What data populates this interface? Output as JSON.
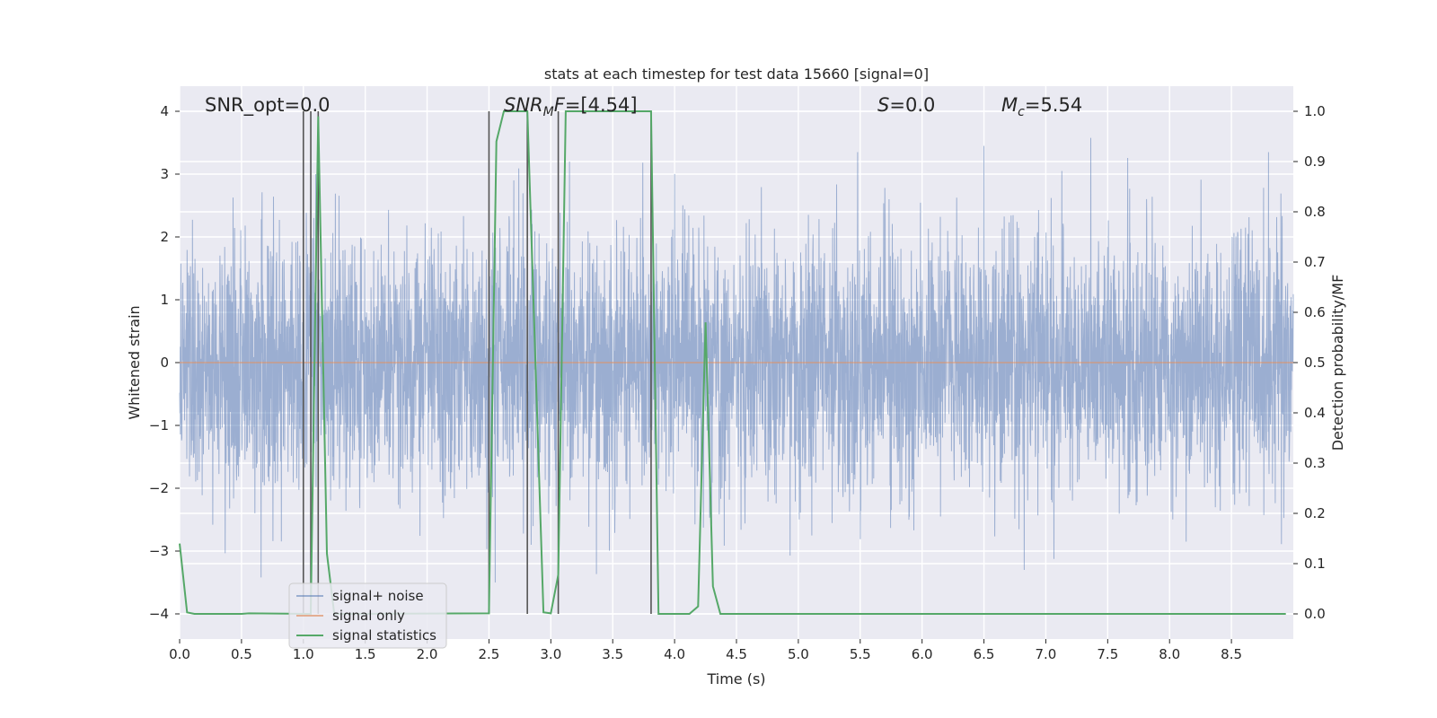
{
  "chart_data": {
    "type": "line",
    "title": "stats at each timestep for test data 15660 [signal=0]",
    "xlabel": "Time (s)",
    "ylabel": "Whitened strain",
    "ylabel_right": "Detection probability/MF",
    "xlim": [
      0.0,
      9.0
    ],
    "ylim": [
      -4.4,
      4.4
    ],
    "ylim_right": [
      -0.05,
      1.05
    ],
    "xticks": [
      0.0,
      0.5,
      1.0,
      1.5,
      2.0,
      2.5,
      3.0,
      3.5,
      4.0,
      4.5,
      5.0,
      5.5,
      6.0,
      6.5,
      7.0,
      7.5,
      8.0,
      8.5
    ],
    "xtick_labels": [
      "0.0",
      "0.5",
      "1.0",
      "1.5",
      "2.0",
      "2.5",
      "3.0",
      "3.5",
      "4.0",
      "4.5",
      "5.0",
      "5.5",
      "6.0",
      "6.5",
      "7.0",
      "7.5",
      "8.0",
      "8.5"
    ],
    "yticks_left": [
      -4,
      -3,
      -2,
      -1,
      0,
      1,
      2,
      3,
      4
    ],
    "ytick_labels_left": [
      "−4",
      "−3",
      "−2",
      "−1",
      "0",
      "1",
      "2",
      "3",
      "4"
    ],
    "yticks_right": [
      0.0,
      0.1,
      0.2,
      0.3,
      0.4,
      0.5,
      0.6,
      0.7,
      0.8,
      0.9,
      1.0
    ],
    "ytick_labels_right": [
      "0.0",
      "0.1",
      "0.2",
      "0.3",
      "0.4",
      "0.5",
      "0.6",
      "0.7",
      "0.8",
      "0.9",
      "1.0"
    ],
    "grid": true,
    "legend_position": "lower-left",
    "legend": [
      {
        "label": "signal+ noise",
        "color": "#4c72b0"
      },
      {
        "label": "signal only",
        "color": "#dd8452"
      },
      {
        "label": "signal statistics",
        "color": "#55a868"
      }
    ],
    "annotations": {
      "snr_opt": {
        "prefix": "SNR_opt=",
        "value": "0.0"
      },
      "snr_mf": {
        "main": "SNR",
        "sub": "M",
        "suffix": "F=",
        "value": "[4.54]"
      },
      "s": {
        "symbol": "S",
        "eq": "=",
        "value": "0.0"
      },
      "mc": {
        "symbol": "M",
        "sub": "c",
        "eq": "=",
        "value": "5.54"
      }
    },
    "series": [
      {
        "name": "signal+ noise",
        "axis": "left",
        "color": "#4c72b0",
        "note": "dense whitened-noise trace, typical amplitude about ±2, spikes to about ±3.5",
        "noise": {
          "n_samples": 4500,
          "sigma": 1.0,
          "clip": 3.6,
          "seed": 15660
        },
        "spikes_x": [
          1.0,
          1.1,
          2.55,
          2.7,
          3.15,
          5.48,
          6.5,
          7.13,
          8.8
        ],
        "spikes_y": [
          3.3,
          3.0,
          -3.5,
          2.9,
          3.2,
          3.35,
          3.45,
          3.05,
          3.35
        ]
      },
      {
        "name": "signal only",
        "axis": "left",
        "color": "#dd8452",
        "x": [
          0.0,
          9.0
        ],
        "y": [
          0.0,
          0.0
        ]
      },
      {
        "name": "signal statistics",
        "axis": "right",
        "color": "#55a868",
        "x": [
          0.0,
          0.06,
          0.12,
          0.5,
          0.56,
          1.06,
          1.12,
          1.19,
          1.25,
          2.5,
          2.56,
          2.62,
          2.81,
          2.94,
          3.0,
          3.06,
          3.12,
          3.19,
          3.81,
          3.87,
          4.12,
          4.19,
          4.25,
          4.31,
          4.37,
          4.44,
          8.94
        ],
        "y": [
          0.14,
          0.003,
          0.0,
          0.0,
          0.001,
          0.0,
          0.99,
          0.12,
          0.0,
          0.001,
          0.94,
          1.0,
          1.0,
          0.003,
          0.001,
          0.078,
          1.0,
          1.0,
          1.0,
          0.0,
          0.0,
          0.015,
          0.58,
          0.055,
          0.0,
          0.0,
          0.0
        ]
      }
    ],
    "vertical_markers_x": [
      1.0,
      1.06,
      1.12,
      2.5,
      2.81,
      3.06,
      3.81
    ]
  }
}
